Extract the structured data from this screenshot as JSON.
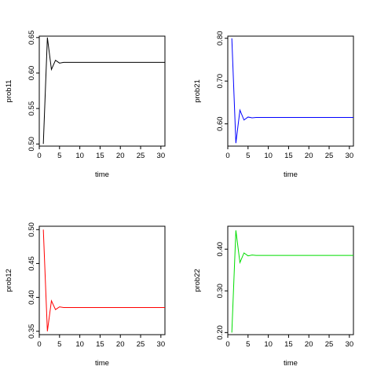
{
  "chart_data": [
    {
      "type": "line",
      "xlabel": "time",
      "ylabel": "prob11",
      "color": "#000000",
      "xlim": [
        0,
        31
      ],
      "ylim": [
        0.497,
        0.652
      ],
      "xticks": [
        0,
        5,
        10,
        15,
        20,
        25,
        30
      ],
      "yticks": [
        0.5,
        0.55,
        0.6,
        0.65
      ],
      "ytick_labels": [
        "0.50",
        "0.55",
        "0.60",
        "0.65"
      ],
      "x": [
        1,
        2,
        3,
        4,
        5,
        6,
        7,
        8,
        9,
        10,
        11,
        12,
        13,
        14,
        15,
        16,
        17,
        18,
        19,
        20,
        21,
        22,
        23,
        24,
        25,
        26,
        27,
        28,
        29,
        30,
        31
      ],
      "y": [
        0.5,
        0.65,
        0.605,
        0.618,
        0.614,
        0.615,
        0.615,
        0.615,
        0.615,
        0.615,
        0.615,
        0.615,
        0.615,
        0.615,
        0.615,
        0.615,
        0.615,
        0.615,
        0.615,
        0.615,
        0.615,
        0.615,
        0.615,
        0.615,
        0.615,
        0.615,
        0.615,
        0.615,
        0.615,
        0.615,
        0.615
      ]
    },
    {
      "type": "line",
      "xlabel": "time",
      "ylabel": "prob21",
      "color": "#0000ff",
      "xlim": [
        0,
        31
      ],
      "ylim": [
        0.548,
        0.805
      ],
      "xticks": [
        0,
        5,
        10,
        15,
        20,
        25,
        30
      ],
      "yticks": [
        0.6,
        0.7,
        0.8
      ],
      "ytick_labels": [
        "0.60",
        "0.70",
        "0.80"
      ],
      "x": [
        1,
        2,
        3,
        4,
        5,
        6,
        7,
        8,
        9,
        10,
        11,
        12,
        13,
        14,
        15,
        16,
        17,
        18,
        19,
        20,
        21,
        22,
        23,
        24,
        25,
        26,
        27,
        28,
        29,
        30,
        31
      ],
      "y": [
        0.8,
        0.555,
        0.632,
        0.609,
        0.616,
        0.614,
        0.615,
        0.615,
        0.615,
        0.615,
        0.615,
        0.615,
        0.615,
        0.615,
        0.615,
        0.615,
        0.615,
        0.615,
        0.615,
        0.615,
        0.615,
        0.615,
        0.615,
        0.615,
        0.615,
        0.615,
        0.615,
        0.615,
        0.615,
        0.615,
        0.615
      ]
    },
    {
      "type": "line",
      "xlabel": "time",
      "ylabel": "prob12",
      "color": "#ff0000",
      "xlim": [
        0,
        31
      ],
      "ylim": [
        0.345,
        0.505
      ],
      "xticks": [
        0,
        5,
        10,
        15,
        20,
        25,
        30
      ],
      "yticks": [
        0.35,
        0.4,
        0.45,
        0.5
      ],
      "ytick_labels": [
        "0.35",
        "0.40",
        "0.45",
        "0.50"
      ],
      "x": [
        1,
        2,
        3,
        4,
        5,
        6,
        7,
        8,
        9,
        10,
        11,
        12,
        13,
        14,
        15,
        16,
        17,
        18,
        19,
        20,
        21,
        22,
        23,
        24,
        25,
        26,
        27,
        28,
        29,
        30,
        31
      ],
      "y": [
        0.5,
        0.35,
        0.395,
        0.382,
        0.386,
        0.385,
        0.385,
        0.385,
        0.385,
        0.385,
        0.385,
        0.385,
        0.385,
        0.385,
        0.385,
        0.385,
        0.385,
        0.385,
        0.385,
        0.385,
        0.385,
        0.385,
        0.385,
        0.385,
        0.385,
        0.385,
        0.385,
        0.385,
        0.385,
        0.385,
        0.385
      ]
    },
    {
      "type": "line",
      "xlabel": "time",
      "ylabel": "prob22",
      "color": "#00dd00",
      "xlim": [
        0,
        31
      ],
      "ylim": [
        0.195,
        0.455
      ],
      "xticks": [
        0,
        5,
        10,
        15,
        20,
        25,
        30
      ],
      "yticks": [
        0.2,
        0.3,
        0.4
      ],
      "ytick_labels": [
        "0.20",
        "0.30",
        "0.40"
      ],
      "x": [
        1,
        2,
        3,
        4,
        5,
        6,
        7,
        8,
        9,
        10,
        11,
        12,
        13,
        14,
        15,
        16,
        17,
        18,
        19,
        20,
        21,
        22,
        23,
        24,
        25,
        26,
        27,
        28,
        29,
        30,
        31
      ],
      "y": [
        0.2,
        0.445,
        0.368,
        0.391,
        0.384,
        0.386,
        0.385,
        0.385,
        0.385,
        0.385,
        0.385,
        0.385,
        0.385,
        0.385,
        0.385,
        0.385,
        0.385,
        0.385,
        0.385,
        0.385,
        0.385,
        0.385,
        0.385,
        0.385,
        0.385,
        0.385,
        0.385,
        0.385,
        0.385,
        0.385,
        0.385
      ]
    }
  ]
}
